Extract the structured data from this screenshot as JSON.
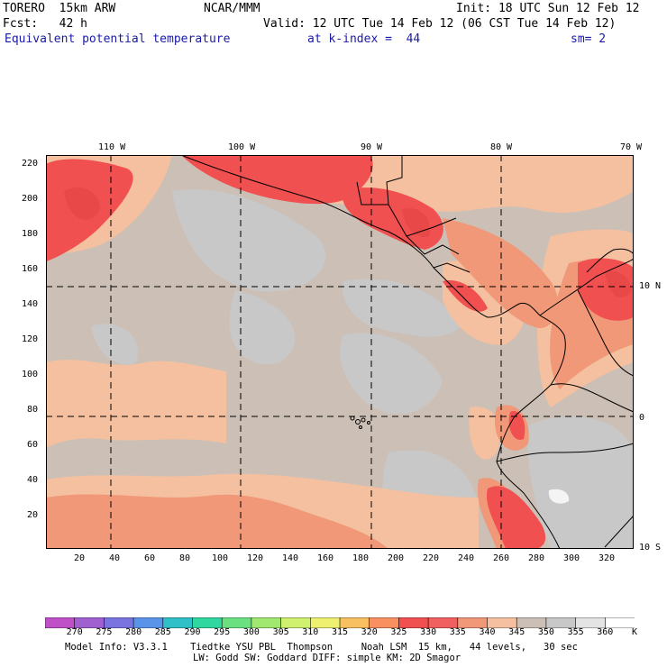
{
  "header": {
    "model": "TORERO  15km ARW",
    "org": "NCAR/MMM",
    "init": "Init: 18 UTC Sun 12 Feb 12",
    "fcst": "Fcst:   42 h",
    "valid": "Valid: 12 UTC Tue 14 Feb 12 (06 CST Tue 14 Feb 12)",
    "field": "Equivalent potential temperature",
    "level": "at k-index =  44",
    "smooth": "sm= 2"
  },
  "axes": {
    "top_lon": [
      "110 W",
      "100 W",
      "90 W",
      "80 W",
      "70 W"
    ],
    "right_lat": [
      "10 N",
      "0",
      "10 S"
    ],
    "left_y": [
      "220",
      "200",
      "180",
      "160",
      "140",
      "120",
      "100",
      "80",
      "60",
      "40",
      "20"
    ],
    "bottom_x": [
      "20",
      "40",
      "60",
      "80",
      "100",
      "120",
      "140",
      "160",
      "180",
      "200",
      "220",
      "240",
      "260",
      "280",
      "300",
      "320"
    ]
  },
  "colorbar": {
    "labels": [
      "270",
      "275",
      "280",
      "285",
      "290",
      "295",
      "300",
      "305",
      "310",
      "315",
      "320",
      "325",
      "330",
      "335",
      "340",
      "345",
      "350",
      "355",
      "360"
    ],
    "unit": "K",
    "colors": [
      "#c050c8",
      "#a060d0",
      "#7a74e0",
      "#5a94e8",
      "#30c0c8",
      "#30d8a0",
      "#6ae080",
      "#a0e870",
      "#d0f070",
      "#f0f070",
      "#f8c060",
      "#f89060",
      "#f05050",
      "#f06060",
      "#f09878",
      "#f4c0a0",
      "#ccbfb6",
      "#c8c8c8",
      "#e4e4e4",
      "#ffffff"
    ]
  },
  "footer": {
    "line1": "Model Info: V3.3.1    Tiedtke YSU PBL  Thompson     Noah LSM  15 km,   44 levels,   30 sec",
    "line2": "LW: Godd SW: Goddard DIFF: simple KM: 2D Smagor"
  }
}
